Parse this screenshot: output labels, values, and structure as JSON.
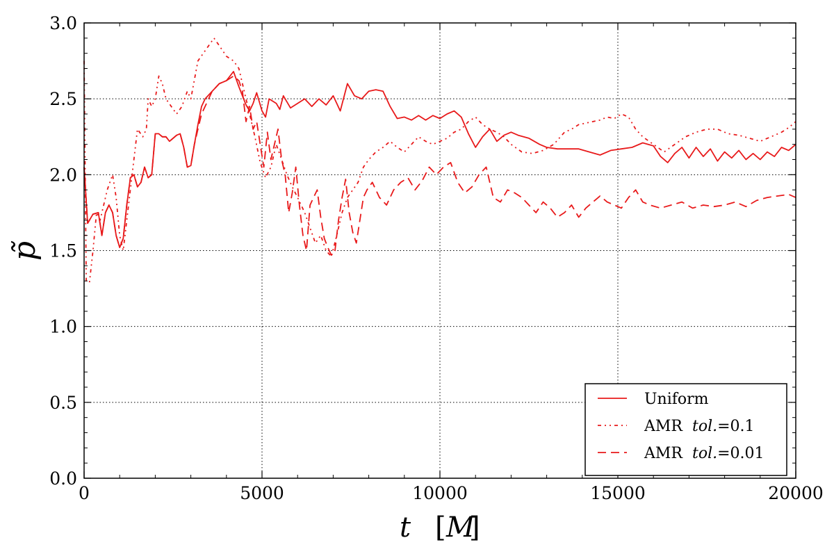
{
  "chart_data": {
    "type": "line",
    "title": "",
    "xlabel_var": "t",
    "xlabel_unit": "M",
    "ylabel": "p̃",
    "xlim": [
      0,
      20000
    ],
    "ylim": [
      0.0,
      3.0
    ],
    "x_ticks": [
      "0",
      "5000",
      "10000",
      "15000",
      "20000"
    ],
    "y_ticks": [
      "0.0",
      "0.5",
      "1.0",
      "1.5",
      "2.0",
      "2.5",
      "3.0"
    ],
    "grid": true,
    "legend_position": "bottom-right",
    "series": [
      {
        "name": "Uniform",
        "line_style": "solid",
        "color": "#e8191a",
        "x": [
          0,
          100,
          250,
          400,
          500,
          600,
          700,
          800,
          900,
          1000,
          1100,
          1200,
          1300,
          1400,
          1500,
          1600,
          1700,
          1800,
          1900,
          2000,
          2100,
          2200,
          2300,
          2400,
          2500,
          2600,
          2700,
          2800,
          2900,
          3000,
          3100,
          3200,
          3300,
          3400,
          3600,
          3800,
          4000,
          4200,
          4350,
          4450,
          4550,
          4650,
          4750,
          4850,
          5000,
          5100,
          5200,
          5400,
          5500,
          5600,
          5800,
          6000,
          6200,
          6400,
          6600,
          6800,
          7000,
          7200,
          7400,
          7600,
          7800,
          8000,
          8200,
          8400,
          8600,
          8800,
          9000,
          9200,
          9400,
          9600,
          9800,
          10000,
          10200,
          10400,
          10600,
          10800,
          11000,
          11200,
          11400,
          11600,
          11800,
          12000,
          12200,
          12500,
          12800,
          13000,
          13300,
          13600,
          13900,
          14200,
          14500,
          14800,
          15100,
          15400,
          15700,
          16000,
          16200,
          16400,
          16600,
          16800,
          17000,
          17200,
          17400,
          17600,
          17800,
          18000,
          18200,
          18400,
          18600,
          18800,
          19000,
          19200,
          19400,
          19600,
          19800,
          20000
        ],
        "y": [
          2.05,
          1.68,
          1.74,
          1.75,
          1.6,
          1.75,
          1.8,
          1.75,
          1.6,
          1.52,
          1.58,
          1.8,
          1.98,
          2.0,
          1.92,
          1.95,
          2.05,
          1.98,
          2.0,
          2.27,
          2.27,
          2.25,
          2.25,
          2.22,
          2.24,
          2.26,
          2.27,
          2.18,
          2.05,
          2.06,
          2.2,
          2.33,
          2.45,
          2.5,
          2.55,
          2.6,
          2.62,
          2.68,
          2.58,
          2.52,
          2.46,
          2.42,
          2.47,
          2.54,
          2.42,
          2.38,
          2.5,
          2.47,
          2.43,
          2.52,
          2.44,
          2.47,
          2.5,
          2.45,
          2.5,
          2.46,
          2.52,
          2.42,
          2.6,
          2.52,
          2.5,
          2.55,
          2.56,
          2.55,
          2.45,
          2.37,
          2.38,
          2.36,
          2.39,
          2.36,
          2.39,
          2.37,
          2.4,
          2.42,
          2.38,
          2.27,
          2.18,
          2.25,
          2.3,
          2.22,
          2.26,
          2.28,
          2.26,
          2.24,
          2.2,
          2.18,
          2.17,
          2.17,
          2.17,
          2.15,
          2.13,
          2.16,
          2.17,
          2.18,
          2.21,
          2.19,
          2.12,
          2.08,
          2.14,
          2.18,
          2.11,
          2.18,
          2.12,
          2.17,
          2.09,
          2.15,
          2.11,
          2.16,
          2.1,
          2.14,
          2.1,
          2.15,
          2.12,
          2.18,
          2.16,
          2.2
        ]
      },
      {
        "name": "AMR  tol.=0.1",
        "line_style": "dashdotdot",
        "color": "#e8191a",
        "x": [
          0,
          60,
          150,
          250,
          350,
          450,
          550,
          650,
          800,
          900,
          1000,
          1100,
          1200,
          1350,
          1500,
          1650,
          1750,
          1800,
          1900,
          2000,
          2100,
          2200,
          2300,
          2450,
          2600,
          2750,
          2900,
          3000,
          3200,
          3350,
          3500,
          3650,
          3800,
          4000,
          4200,
          4350,
          4500,
          4650,
          4800,
          4950,
          5100,
          5250,
          5400,
          5550,
          5700,
          5850,
          6000,
          6200,
          6350,
          6500,
          6650,
          6800,
          6950,
          7100,
          7250,
          7400,
          7550,
          7700,
          7850,
          8000,
          8200,
          8400,
          8600,
          8800,
          9000,
          9200,
          9400,
          9600,
          9800,
          10000,
          10200,
          10400,
          10600,
          10800,
          11000,
          11200,
          11400,
          11600,
          11800,
          12000,
          12300,
          12600,
          12900,
          13200,
          13500,
          13700,
          13900,
          14100,
          14300,
          14500,
          14700,
          14900,
          15100,
          15300,
          15500,
          15700,
          16000,
          16300,
          16600,
          16900,
          17200,
          17500,
          17800,
          18100,
          18400,
          18700,
          19000,
          19300,
          19600,
          19800,
          20000
        ],
        "y": [
          2.75,
          1.3,
          1.29,
          1.5,
          1.75,
          1.7,
          1.8,
          1.9,
          2.0,
          1.85,
          1.6,
          1.5,
          1.7,
          2.0,
          2.3,
          2.25,
          2.3,
          2.5,
          2.45,
          2.5,
          2.65,
          2.6,
          2.5,
          2.45,
          2.4,
          2.45,
          2.55,
          2.5,
          2.75,
          2.8,
          2.85,
          2.9,
          2.85,
          2.78,
          2.75,
          2.7,
          2.55,
          2.4,
          2.25,
          2.08,
          1.98,
          2.05,
          2.2,
          2.1,
          2.0,
          1.92,
          1.85,
          1.75,
          1.65,
          1.55,
          1.6,
          1.5,
          1.46,
          1.6,
          1.75,
          1.85,
          1.9,
          1.95,
          2.05,
          2.1,
          2.15,
          2.18,
          2.22,
          2.18,
          2.15,
          2.2,
          2.25,
          2.22,
          2.2,
          2.22,
          2.24,
          2.28,
          2.3,
          2.35,
          2.38,
          2.33,
          2.3,
          2.28,
          2.25,
          2.2,
          2.15,
          2.14,
          2.16,
          2.2,
          2.28,
          2.3,
          2.33,
          2.34,
          2.35,
          2.36,
          2.38,
          2.37,
          2.4,
          2.38,
          2.3,
          2.25,
          2.2,
          2.15,
          2.2,
          2.25,
          2.28,
          2.3,
          2.3,
          2.27,
          2.26,
          2.24,
          2.22,
          2.25,
          2.28,
          2.31,
          2.35
        ]
      },
      {
        "name": "AMR  tol.=0.01",
        "line_style": "dashed",
        "color": "#e8191a",
        "x": [
          0,
          100,
          250,
          400,
          500,
          600,
          700,
          800,
          900,
          1000,
          1100,
          1200,
          1300,
          1400,
          1500,
          1600,
          1700,
          1800,
          1900,
          2000,
          2100,
          2200,
          2300,
          2400,
          2500,
          2600,
          2700,
          2800,
          2900,
          3000,
          3100,
          3200,
          3300,
          3400,
          3600,
          3800,
          4000,
          4200,
          4350,
          4450,
          4550,
          4650,
          4750,
          4850,
          4950,
          5050,
          5150,
          5250,
          5350,
          5450,
          5550,
          5650,
          5750,
          5850,
          5950,
          6050,
          6150,
          6250,
          6350,
          6450,
          6550,
          6650,
          6750,
          6850,
          6950,
          7050,
          7150,
          7250,
          7350,
          7450,
          7550,
          7650,
          7750,
          7850,
          7950,
          8100,
          8300,
          8500,
          8700,
          8900,
          9100,
          9300,
          9500,
          9700,
          9900,
          10100,
          10300,
          10500,
          10700,
          10900,
          11100,
          11300,
          11500,
          11700,
          11900,
          12100,
          12300,
          12500,
          12700,
          12900,
          13100,
          13300,
          13500,
          13700,
          13900,
          14100,
          14300,
          14500,
          14700,
          14900,
          15100,
          15300,
          15500,
          15700,
          15900,
          16200,
          16500,
          16800,
          17100,
          17400,
          17700,
          18000,
          18300,
          18600,
          18900,
          19200,
          19500,
          19800,
          20000
        ],
        "y": [
          2.05,
          1.68,
          1.74,
          1.75,
          1.6,
          1.75,
          1.8,
          1.75,
          1.6,
          1.52,
          1.58,
          1.8,
          1.98,
          2.0,
          1.92,
          1.95,
          2.05,
          1.98,
          2.0,
          2.27,
          2.27,
          2.25,
          2.25,
          2.22,
          2.24,
          2.26,
          2.27,
          2.18,
          2.05,
          2.06,
          2.2,
          2.3,
          2.4,
          2.45,
          2.55,
          2.6,
          2.62,
          2.65,
          2.62,
          2.55,
          2.35,
          2.45,
          2.3,
          2.35,
          2.2,
          2.05,
          2.28,
          2.1,
          2.2,
          2.3,
          2.1,
          2.0,
          1.75,
          1.88,
          2.05,
          1.8,
          1.6,
          1.5,
          1.8,
          1.85,
          1.9,
          1.72,
          1.58,
          1.52,
          1.47,
          1.5,
          1.7,
          1.85,
          1.97,
          1.75,
          1.62,
          1.55,
          1.7,
          1.85,
          1.9,
          1.95,
          1.85,
          1.8,
          1.9,
          1.95,
          1.98,
          1.9,
          1.96,
          2.05,
          2.0,
          2.05,
          2.08,
          1.95,
          1.88,
          1.92,
          2.0,
          2.05,
          1.85,
          1.82,
          1.9,
          1.88,
          1.85,
          1.8,
          1.75,
          1.82,
          1.78,
          1.72,
          1.75,
          1.8,
          1.72,
          1.78,
          1.82,
          1.86,
          1.82,
          1.8,
          1.78,
          1.85,
          1.9,
          1.82,
          1.8,
          1.78,
          1.8,
          1.82,
          1.78,
          1.8,
          1.79,
          1.8,
          1.82,
          1.79,
          1.83,
          1.85,
          1.86,
          1.87,
          1.85
        ]
      }
    ],
    "legend": [
      {
        "name": "Uniform",
        "line_style": "solid"
      },
      {
        "name_main": "AMR",
        "name_italic": "tol.",
        "name_value": "=0.1",
        "line_style": "dashdotdot"
      },
      {
        "name_main": "AMR",
        "name_italic": "tol.",
        "name_value": "=0.01",
        "line_style": "dashed"
      }
    ]
  }
}
